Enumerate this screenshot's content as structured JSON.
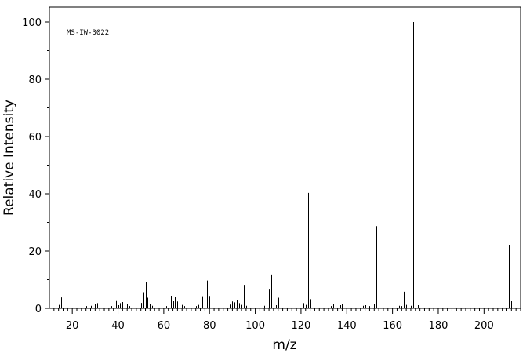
{
  "chart_data": {
    "type": "bar",
    "title": "",
    "annotation": "MS-IW-3022",
    "xlabel": "m/z",
    "ylabel": "Relative Intensity",
    "xlim": [
      10,
      216
    ],
    "ylim": [
      0,
      100
    ],
    "xticks": [
      20,
      40,
      60,
      80,
      100,
      120,
      140,
      160,
      180,
      200
    ],
    "yticks": [
      0,
      20,
      40,
      60,
      80,
      100
    ],
    "grid": false,
    "color": "#000000",
    "peaks": [
      {
        "mz": 14,
        "intensity": 1.2
      },
      {
        "mz": 15,
        "intensity": 3.8
      },
      {
        "mz": 26,
        "intensity": 0.8
      },
      {
        "mz": 27,
        "intensity": 1.2
      },
      {
        "mz": 28,
        "intensity": 0.9
      },
      {
        "mz": 29,
        "intensity": 1.4
      },
      {
        "mz": 30,
        "intensity": 1.5
      },
      {
        "mz": 31,
        "intensity": 1.8
      },
      {
        "mz": 37,
        "intensity": 0.8
      },
      {
        "mz": 38,
        "intensity": 1.2
      },
      {
        "mz": 39,
        "intensity": 2.8
      },
      {
        "mz": 40,
        "intensity": 1.1
      },
      {
        "mz": 41,
        "intensity": 1.8
      },
      {
        "mz": 42,
        "intensity": 2.2
      },
      {
        "mz": 43,
        "intensity": 40.0
      },
      {
        "mz": 44,
        "intensity": 1.6
      },
      {
        "mz": 45,
        "intensity": 0.8
      },
      {
        "mz": 50,
        "intensity": 1.9
      },
      {
        "mz": 51,
        "intensity": 5.6
      },
      {
        "mz": 52,
        "intensity": 9.1
      },
      {
        "mz": 53,
        "intensity": 3.7
      },
      {
        "mz": 54,
        "intensity": 1.5
      },
      {
        "mz": 55,
        "intensity": 0.9
      },
      {
        "mz": 61,
        "intensity": 0.8
      },
      {
        "mz": 62,
        "intensity": 1.5
      },
      {
        "mz": 63,
        "intensity": 4.4
      },
      {
        "mz": 64,
        "intensity": 2.7
      },
      {
        "mz": 65,
        "intensity": 4.0
      },
      {
        "mz": 66,
        "intensity": 2.4
      },
      {
        "mz": 67,
        "intensity": 1.9
      },
      {
        "mz": 68,
        "intensity": 1.2
      },
      {
        "mz": 69,
        "intensity": 0.8
      },
      {
        "mz": 74,
        "intensity": 0.8
      },
      {
        "mz": 75,
        "intensity": 1.2
      },
      {
        "mz": 76,
        "intensity": 1.8
      },
      {
        "mz": 77,
        "intensity": 4.2
      },
      {
        "mz": 78,
        "intensity": 2.6
      },
      {
        "mz": 79,
        "intensity": 9.7
      },
      {
        "mz": 80,
        "intensity": 4.3
      },
      {
        "mz": 81,
        "intensity": 0.8
      },
      {
        "mz": 89,
        "intensity": 1.3
      },
      {
        "mz": 90,
        "intensity": 2.4
      },
      {
        "mz": 91,
        "intensity": 2.1
      },
      {
        "mz": 92,
        "intensity": 3.0
      },
      {
        "mz": 93,
        "intensity": 1.8
      },
      {
        "mz": 94,
        "intensity": 1.2
      },
      {
        "mz": 95,
        "intensity": 8.2
      },
      {
        "mz": 96,
        "intensity": 0.9
      },
      {
        "mz": 104,
        "intensity": 0.9
      },
      {
        "mz": 105,
        "intensity": 1.5
      },
      {
        "mz": 106,
        "intensity": 6.8
      },
      {
        "mz": 107,
        "intensity": 11.8
      },
      {
        "mz": 108,
        "intensity": 1.9
      },
      {
        "mz": 109,
        "intensity": 1.1
      },
      {
        "mz": 110,
        "intensity": 3.7
      },
      {
        "mz": 121,
        "intensity": 1.8
      },
      {
        "mz": 122,
        "intensity": 1.2
      },
      {
        "mz": 123,
        "intensity": 40.3
      },
      {
        "mz": 124,
        "intensity": 3.2
      },
      {
        "mz": 133,
        "intensity": 0.8
      },
      {
        "mz": 134,
        "intensity": 1.4
      },
      {
        "mz": 135,
        "intensity": 0.9
      },
      {
        "mz": 137,
        "intensity": 1.1
      },
      {
        "mz": 138,
        "intensity": 1.6
      },
      {
        "mz": 146,
        "intensity": 0.8
      },
      {
        "mz": 147,
        "intensity": 0.9
      },
      {
        "mz": 148,
        "intensity": 1.1
      },
      {
        "mz": 149,
        "intensity": 1.3
      },
      {
        "mz": 150,
        "intensity": 0.8
      },
      {
        "mz": 151,
        "intensity": 1.7
      },
      {
        "mz": 152,
        "intensity": 1.6
      },
      {
        "mz": 153,
        "intensity": 28.7
      },
      {
        "mz": 154,
        "intensity": 2.3
      },
      {
        "mz": 163,
        "intensity": 0.9
      },
      {
        "mz": 164,
        "intensity": 0.8
      },
      {
        "mz": 165,
        "intensity": 5.8
      },
      {
        "mz": 166,
        "intensity": 1.2
      },
      {
        "mz": 168,
        "intensity": 0.9
      },
      {
        "mz": 169,
        "intensity": 100.0
      },
      {
        "mz": 170,
        "intensity": 8.9
      },
      {
        "mz": 171,
        "intensity": 1.1
      },
      {
        "mz": 211,
        "intensity": 22.2
      },
      {
        "mz": 212,
        "intensity": 2.6
      }
    ]
  }
}
